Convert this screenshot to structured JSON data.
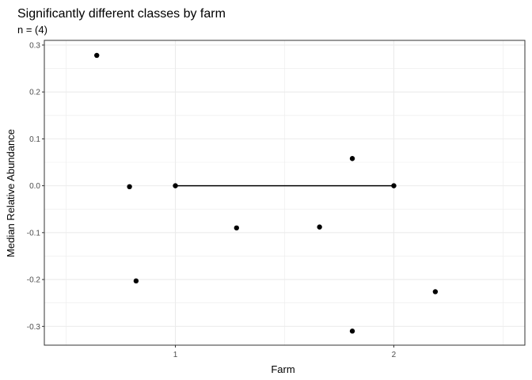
{
  "chart_data": {
    "type": "scatter",
    "title": "Significantly different classes by farm",
    "subtitle": "n = (4)",
    "xlabel": "Farm",
    "ylabel": "Median Relative Abundance",
    "xlim": [
      0.4,
      2.6
    ],
    "ylim": [
      -0.34,
      0.31
    ],
    "x_ticks": [
      1,
      2
    ],
    "x_tick_labels": [
      "1",
      "2"
    ],
    "y_ticks": [
      0.3,
      0.2,
      0.1,
      0.0,
      -0.1,
      -0.2,
      -0.3
    ],
    "y_tick_labels": [
      "0.3",
      "0.2",
      "0.1",
      "0.0",
      "-0.1",
      "-0.2",
      "-0.3"
    ],
    "grid": true,
    "points": [
      {
        "x": 0.64,
        "y": 0.278
      },
      {
        "x": 0.79,
        "y": -0.002
      },
      {
        "x": 0.82,
        "y": -0.203
      },
      {
        "x": 1.0,
        "y": 0.0
      },
      {
        "x": 1.28,
        "y": -0.09
      },
      {
        "x": 1.66,
        "y": -0.088
      },
      {
        "x": 1.81,
        "y": 0.058
      },
      {
        "x": 1.81,
        "y": -0.31
      },
      {
        "x": 2.0,
        "y": 0.0
      },
      {
        "x": 2.19,
        "y": -0.226
      }
    ],
    "segments": [
      {
        "x1": 1.0,
        "y1": 0.0,
        "x2": 2.0,
        "y2": 0.0
      }
    ],
    "colors": {
      "points": "#000000",
      "grid": "#ebebeb",
      "panel_border": "#333333",
      "tick_label": "#4d4d4d"
    }
  }
}
